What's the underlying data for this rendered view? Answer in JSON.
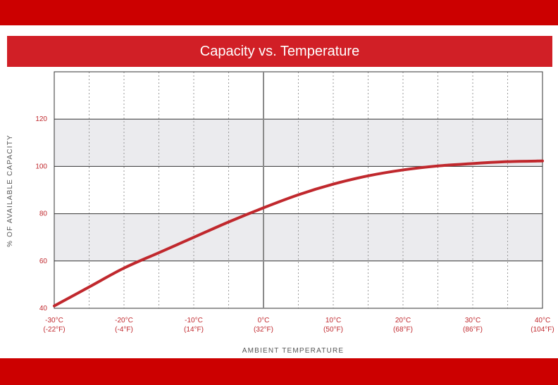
{
  "title": "Capacity vs. Temperature",
  "colors": {
    "brand_red": "#cc0000",
    "title_band": "#d11f26",
    "curve": "#c0282d",
    "shaded_band": "#ebebee"
  },
  "chart_data": {
    "type": "line",
    "title": "Capacity vs. Temperature",
    "xlabel": "AMBIENT TEMPERATURE",
    "ylabel": "% OF AVAILABLE CAPACITY",
    "xlim": [
      -30,
      40
    ],
    "ylim": [
      40,
      140
    ],
    "x_unit": "°C",
    "x_ticks": [
      {
        "value": -30,
        "c": "-30°C",
        "f": "(-22°F)"
      },
      {
        "value": -20,
        "c": "-20°C",
        "f": "(-4°F)"
      },
      {
        "value": -10,
        "c": "-10°C",
        "f": "(14°F)"
      },
      {
        "value": 0,
        "c": "0°C",
        "f": "(32°F)"
      },
      {
        "value": 10,
        "c": "10°C",
        "f": "(50°F)"
      },
      {
        "value": 20,
        "c": "20°C",
        "f": "(68°F)"
      },
      {
        "value": 30,
        "c": "30°C",
        "f": "(86°F)"
      },
      {
        "value": 40,
        "c": "40°C",
        "f": "(104°F)"
      }
    ],
    "y_ticks": [
      40,
      60,
      80,
      100,
      120
    ],
    "shaded_bands": [
      [
        60,
        80
      ],
      [
        100,
        120
      ]
    ],
    "grid": "dotted vertical every 5°C; solid horizontal every 20%",
    "series": [
      {
        "x": [
          -30,
          -25,
          -20,
          -15,
          -10,
          -5,
          0,
          5,
          10,
          15,
          20,
          25,
          30,
          35,
          40
        ],
        "y": [
          41,
          49,
          57,
          63.5,
          70,
          76.5,
          82.5,
          88,
          92.5,
          96,
          98.5,
          100.2,
          101.2,
          102,
          102.3
        ]
      }
    ]
  }
}
